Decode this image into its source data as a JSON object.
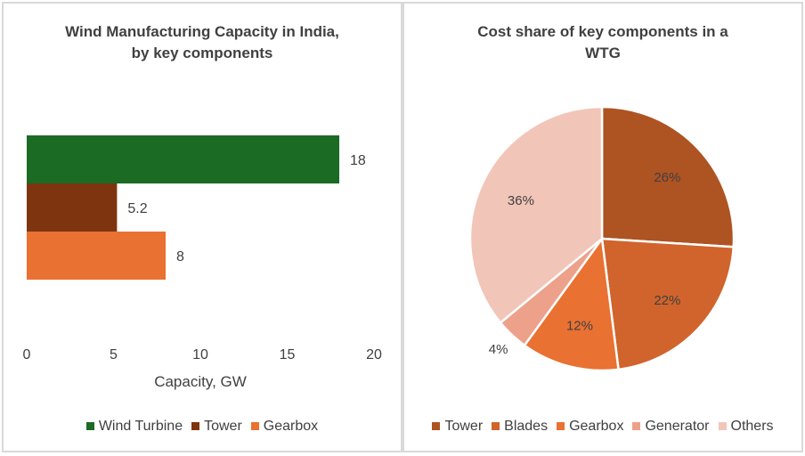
{
  "chart_data": [
    {
      "type": "bar",
      "orientation": "horizontal",
      "title": "Wind Manufacturing Capacity in India, by key components",
      "title_lines": [
        "Wind Manufacturing Capacity in India,",
        "by key components"
      ],
      "xlabel": "Capacity, GW",
      "xlim": [
        0,
        20
      ],
      "xticks": [
        "0",
        "5",
        "10",
        "15",
        "20"
      ],
      "grid": false,
      "legend_position": "bottom",
      "series": [
        {
          "name": "Wind Turbine",
          "value": 18,
          "label": "18",
          "color": "#1b6b25"
        },
        {
          "name": "Tower",
          "value": 5.2,
          "label": "5.2",
          "color": "#7f3410"
        },
        {
          "name": "Gearbox",
          "value": 8,
          "label": "8",
          "color": "#e97132"
        }
      ]
    },
    {
      "type": "pie",
      "title": "Cost share of key components in a WTG",
      "title_lines": [
        "Cost share of key components in a",
        "WTG"
      ],
      "legend_position": "bottom",
      "slices": [
        {
          "name": "Tower",
          "value": 26,
          "label": "26%",
          "color": "#ae5322"
        },
        {
          "name": "Blades",
          "value": 22,
          "label": "22%",
          "color": "#d0642c"
        },
        {
          "name": "Gearbox",
          "value": 12,
          "label": "12%",
          "color": "#e97132"
        },
        {
          "name": "Generator",
          "value": 4,
          "label": "4%",
          "color": "#eda18a"
        },
        {
          "name": "Others",
          "value": 36,
          "label": "36%",
          "color": "#f2c5b9"
        }
      ]
    }
  ]
}
